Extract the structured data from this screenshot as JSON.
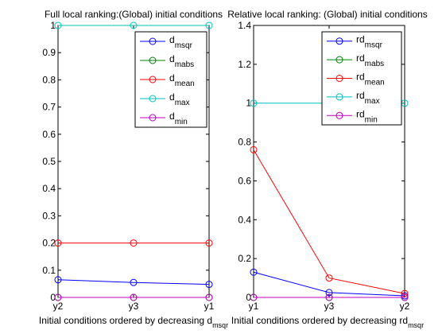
{
  "chart_data": [
    {
      "type": "line",
      "title": "Full local ranking:(Global) initial conditions",
      "xlabel_main": "Initial conditions ordered by decreasing d",
      "xlabel_sub": "msqr",
      "categories": [
        "y2",
        "y3",
        "y1"
      ],
      "ylim": [
        0,
        1
      ],
      "yticks": [
        "0",
        "0.1",
        "0.2",
        "0.3",
        "0.4",
        "0.5",
        "0.6",
        "0.7",
        "0.8",
        "0.9",
        "1"
      ],
      "legend_position": "top-right",
      "series": [
        {
          "name_main": "d",
          "name_sub": "msqr",
          "color": "#0000ff",
          "values": [
            0.065,
            0.055,
            0.048
          ]
        },
        {
          "name_main": "d",
          "name_sub": "mabs",
          "color": "#008000",
          "values": [
            0,
            0,
            0
          ]
        },
        {
          "name_main": "d",
          "name_sub": "mean",
          "color": "#ff0000",
          "values": [
            0.2,
            0.2,
            0.2
          ]
        },
        {
          "name_main": "d",
          "name_sub": "max",
          "color": "#00bfbf",
          "values": [
            1,
            1,
            1
          ]
        },
        {
          "name_main": "d",
          "name_sub": "min",
          "color": "#bf00bf",
          "values": [
            0,
            0,
            0
          ]
        }
      ]
    },
    {
      "type": "line",
      "title": "Relative local ranking: (Global) initial conditions",
      "xlabel_main": "Initial conditions ordered by decreasing rd",
      "xlabel_sub": "msqr",
      "categories": [
        "y1",
        "y3",
        "y2"
      ],
      "ylim": [
        0,
        1.4
      ],
      "yticks": [
        "0",
        "0.2",
        "0.4",
        "0.6",
        "0.8",
        "1",
        "1.2",
        "1.4"
      ],
      "legend_position": "top-right",
      "series": [
        {
          "name_main": "rd",
          "name_sub": "msqr",
          "color": "#0000ff",
          "values": [
            0.13,
            0.025,
            0.008
          ]
        },
        {
          "name_main": "rd",
          "name_sub": "mabs",
          "color": "#008000",
          "values": [
            0,
            0,
            0
          ]
        },
        {
          "name_main": "rd",
          "name_sub": "mean",
          "color": "#ff0000",
          "values": [
            0.76,
            0.1,
            0.02
          ]
        },
        {
          "name_main": "rd",
          "name_sub": "max",
          "color": "#00bfbf",
          "values": [
            1,
            1,
            1
          ]
        },
        {
          "name_main": "rd",
          "name_sub": "min",
          "color": "#bf00bf",
          "values": [
            0,
            0,
            0
          ]
        }
      ]
    }
  ]
}
